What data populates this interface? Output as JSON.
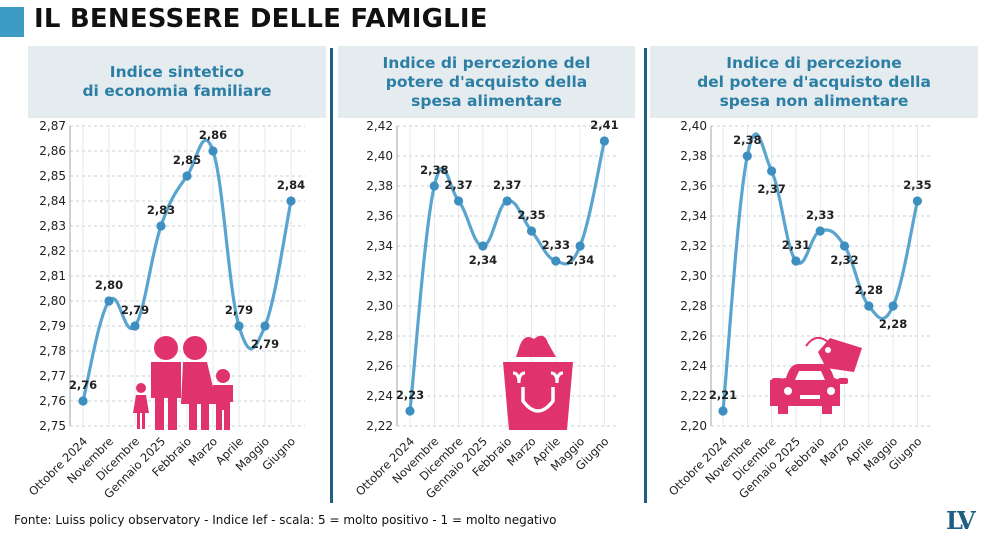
{
  "title": "IL BENESSERE DELLE FAMIGLIE",
  "source": "Fonte: Luiss policy observatory - Indice Ief - scala: 5 = molto positivo - 1 = molto negativo",
  "logo": "LV",
  "colors": {
    "line": "#5aa5cf",
    "point": "#3d8fbf",
    "accent": "#3d9bc4",
    "icon": "#e0336e",
    "header_bg": "#e5ecef",
    "header_text": "#2c7ea5"
  },
  "chart_data": [
    {
      "type": "line",
      "title": "Indice sintetico\ndi economia familiare",
      "categories": [
        "Ottobre 2024",
        "Novembre",
        "Dicembre",
        "Gennaio 2025",
        "Febbraio",
        "Marzo",
        "Aprile",
        "Maggio",
        "Giugno"
      ],
      "values": [
        2.76,
        2.8,
        2.79,
        2.83,
        2.85,
        2.86,
        2.79,
        2.79,
        2.84
      ],
      "value_labels": [
        "2,76",
        "2,80",
        "2,79",
        "2,83",
        "2,85",
        "2,86",
        "2,79",
        "2,79",
        "2,84"
      ],
      "ylim": [
        2.75,
        2.87
      ],
      "yticks": [
        "2,75",
        "2,76",
        "2,77",
        "2,78",
        "2,79",
        "2,80",
        "2,81",
        "2,82",
        "2,83",
        "2,84",
        "2,85",
        "2,86",
        "2,87"
      ],
      "grid": "horizontal dashed",
      "icon": "family-icon"
    },
    {
      "type": "line",
      "title": "Indice di percezione del\npotere d'acquisto della\nspesa alimentare",
      "categories": [
        "Ottobre 2024",
        "Novembre",
        "Dicembre",
        "Gennaio 2025",
        "Febbraio",
        "Marzo",
        "Aprile",
        "Maggio",
        "Giugno"
      ],
      "values": [
        2.23,
        2.38,
        2.37,
        2.34,
        2.37,
        2.35,
        2.33,
        2.34,
        2.41
      ],
      "value_labels": [
        "2,23",
        "2,38",
        "2,37",
        "2,34",
        "2,37",
        "2,35",
        "2,33",
        "2,34",
        "2,41"
      ],
      "ylim": [
        2.22,
        2.42
      ],
      "yticks": [
        "2,22",
        "2,24",
        "2,26",
        "2,28",
        "2,30",
        "2,32",
        "2,34",
        "2,36",
        "2,38",
        "2,40",
        "2,42"
      ],
      "grid": "horizontal dashed",
      "icon": "grocery-bag-icon"
    },
    {
      "type": "line",
      "title": "Indice di percezione\ndel potere d'acquisto della\nspesa non alimentare",
      "categories": [
        "Ottobre 2024",
        "Novembre",
        "Dicembre",
        "Gennaio 2025",
        "Febbraio",
        "Marzo",
        "Aprile",
        "Maggio",
        "Giugno"
      ],
      "values": [
        2.21,
        2.38,
        2.37,
        2.31,
        2.33,
        2.32,
        2.28,
        2.28,
        2.35
      ],
      "value_labels": [
        "2,21",
        "2,38",
        "2,37",
        "2,31",
        "2,33",
        "2,32",
        "2,28",
        "2,28",
        "2,35"
      ],
      "ylim": [
        2.2,
        2.4
      ],
      "yticks": [
        "2,20",
        "2,22",
        "2,24",
        "2,26",
        "2,28",
        "2,30",
        "2,32",
        "2,34",
        "2,36",
        "2,38",
        "2,40"
      ],
      "grid": "horizontal dashed",
      "icon": "car-price-tag-icon"
    }
  ]
}
